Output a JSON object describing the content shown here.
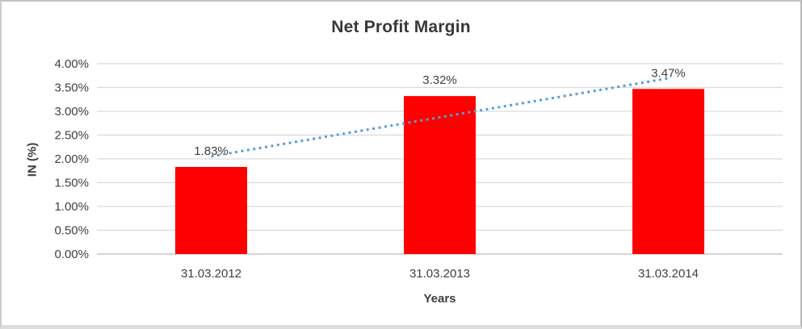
{
  "chart_data": {
    "type": "bar",
    "title": "Net Profit Margin",
    "xlabel": "Years",
    "ylabel": "IN (%)",
    "categories": [
      "31.03.2012",
      "31.03.2013",
      "31.03.2014"
    ],
    "series": [
      {
        "name": "Net Profit Margin",
        "values": [
          1.83,
          3.32,
          3.47
        ]
      }
    ],
    "data_labels": [
      "1.83%",
      "3.32%",
      "3.47%"
    ],
    "y_ticks": [
      "4.00%",
      "3.50%",
      "3.00%",
      "2.50%",
      "2.00%",
      "1.50%",
      "1.00%",
      "0.50%",
      "0.00%"
    ],
    "ylim": [
      0,
      4
    ],
    "y_step": 0.5,
    "grid": true,
    "legend": "none",
    "trendline": {
      "type": "linear",
      "style": "dotted",
      "color": "#5B9BD5"
    },
    "colors": {
      "bar": "#FF0000",
      "gridline": "#D9D9D9",
      "axis_line": "#C6C6C6",
      "text": "#404040",
      "title": "#383838"
    }
  }
}
